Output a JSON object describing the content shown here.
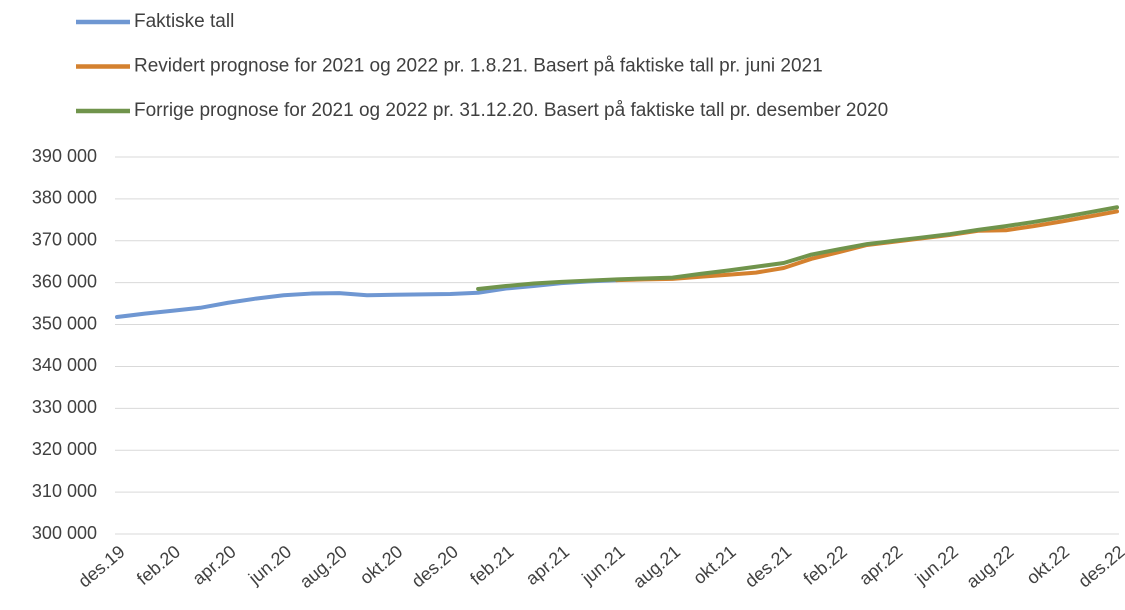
{
  "chart_data": {
    "type": "line",
    "categories": [
      "des.19",
      null,
      "feb.20",
      null,
      "apr.20",
      null,
      "jun.20",
      null,
      "aug.20",
      null,
      "okt.20",
      null,
      "des.20",
      null,
      "feb.21",
      null,
      "apr.21",
      null,
      "jun.21",
      null,
      "aug.21",
      null,
      "okt.21",
      null,
      "des.21",
      null,
      "feb.22",
      null,
      "apr.22",
      null,
      "jun.22",
      null,
      "aug.22",
      null,
      "okt.22",
      null,
      "des.22"
    ],
    "series": [
      {
        "name": "Faktiske tall",
        "color": "#6f97d2",
        "values": [
          351800,
          352600,
          353300,
          354000,
          355200,
          356200,
          357000,
          357400,
          357500,
          357000,
          357100,
          357200,
          357300,
          357600,
          358600,
          359200,
          359900,
          360300,
          360600,
          null,
          null,
          null,
          null,
          null,
          null,
          null,
          null,
          null,
          null,
          null,
          null,
          null,
          null,
          null,
          null,
          null,
          null
        ]
      },
      {
        "name": "Revidert prognose for 2021 og 2022 pr. 1.8.21. Basert på faktiske tall pr. juni 2021",
        "color": "#d4812f",
        "values": [
          null,
          null,
          null,
          null,
          null,
          null,
          null,
          null,
          null,
          null,
          null,
          null,
          null,
          null,
          null,
          null,
          null,
          null,
          360600,
          360800,
          360900,
          361400,
          361900,
          362400,
          363500,
          365700,
          367300,
          369000,
          369800,
          370600,
          371400,
          372400,
          372500,
          373500,
          374600,
          375800,
          377000
        ]
      },
      {
        "name": "Forrige prognose for 2021 og 2022 pr. 31.12.20. Basert på faktiske tall pr. desember 2020",
        "color": "#70944c",
        "values": [
          null,
          null,
          null,
          null,
          null,
          null,
          null,
          null,
          null,
          null,
          null,
          null,
          null,
          358500,
          359200,
          359800,
          360200,
          360500,
          360800,
          361000,
          361200,
          362100,
          362900,
          363800,
          364700,
          366700,
          368000,
          369200,
          370000,
          370800,
          371600,
          372600,
          373500,
          374500,
          375600,
          376800,
          378000
        ]
      }
    ],
    "ylim": [
      300000,
      390000
    ],
    "yticks": [
      {
        "value": 300000,
        "label": "300 000"
      },
      {
        "value": 310000,
        "label": "310 000"
      },
      {
        "value": 320000,
        "label": "320 000"
      },
      {
        "value": 330000,
        "label": "330 000"
      },
      {
        "value": 340000,
        "label": "340 000"
      },
      {
        "value": 350000,
        "label": "350 000"
      },
      {
        "value": 360000,
        "label": "360 000"
      },
      {
        "value": 370000,
        "label": "370 000"
      },
      {
        "value": 380000,
        "label": "380 000"
      },
      {
        "value": 390000,
        "label": "390 000"
      }
    ],
    "grid": true,
    "legend": "top"
  }
}
